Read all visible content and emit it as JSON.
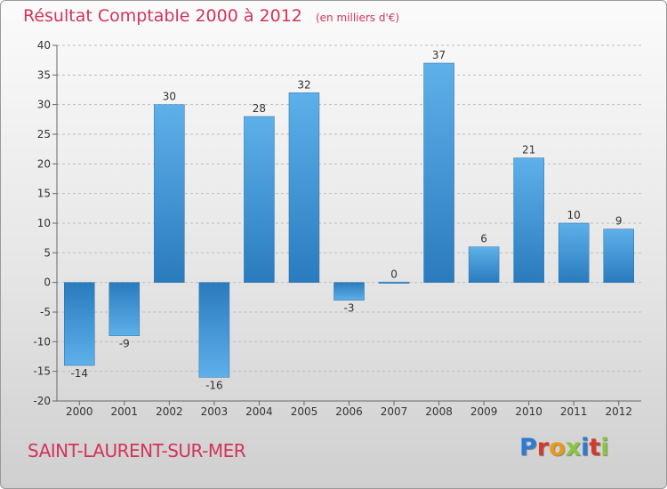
{
  "header": {
    "title": "Résultat Comptable 2000 à 2012",
    "subtitle": "(en milliers d'€)"
  },
  "footer": {
    "town": "SAINT-LAURENT-SUR-MER",
    "logo": "Proxiti",
    "logo_colors": [
      "#2e7bd2",
      "#d23a2f",
      "#e79a1a",
      "#8cc63e",
      "#2e7bd2",
      "#d23a2f",
      "#8cc63e"
    ]
  },
  "colors": {
    "title": "#d2345a",
    "bar_light": "#5eb0ea",
    "bar_dark": "#2a7bbd"
  },
  "chart_data": {
    "type": "bar",
    "title": "Résultat Comptable 2000 à 2012",
    "subtitle": "(en milliers d'€)",
    "categories": [
      "2000",
      "2001",
      "2002",
      "2003",
      "2004",
      "2005",
      "2006",
      "2007",
      "2008",
      "2009",
      "2010",
      "2011",
      "2012"
    ],
    "values": [
      -14,
      -9,
      30,
      -16,
      28,
      32,
      -3,
      0,
      37,
      6,
      21,
      10,
      9
    ],
    "value_labels": [
      "-14",
      "-9",
      "30",
      "-16",
      "28",
      "32",
      "-3",
      "0",
      "37",
      "6",
      "21",
      "10",
      "9"
    ],
    "ylim": [
      -20,
      40
    ],
    "yticks": [
      -20,
      -15,
      -10,
      -5,
      0,
      5,
      10,
      15,
      20,
      25,
      30,
      35,
      40
    ],
    "grid": "horizontal dashed",
    "xlabel": "",
    "ylabel": ""
  }
}
